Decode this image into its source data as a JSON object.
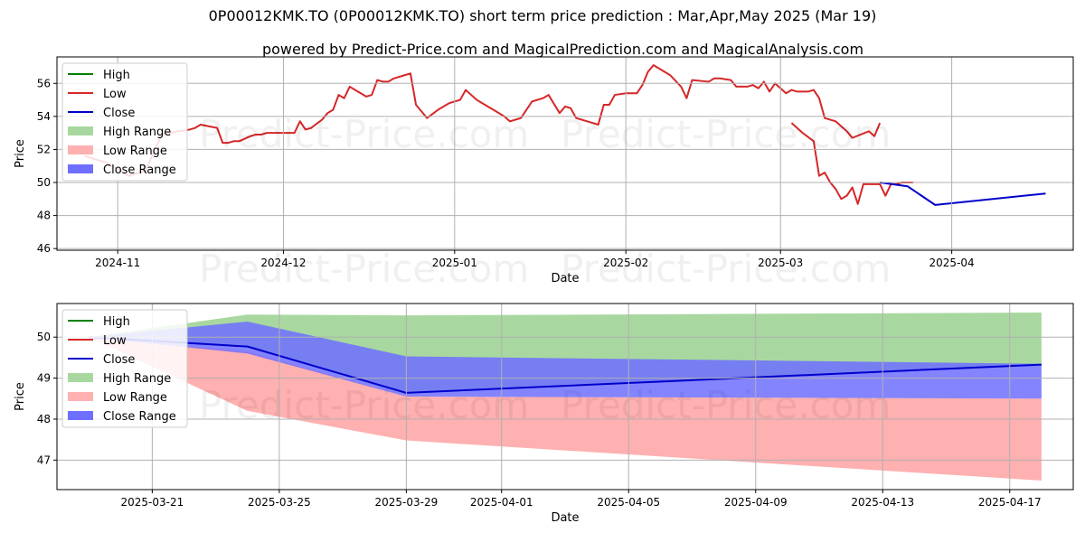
{
  "title": "0P00012KMK.TO (0P00012KMK.TO) short term price prediction : Mar,Apr,May 2025 (Mar 19)",
  "subtitle": "powered by Predict-Price.com and MagicalPrediction.com and MagicalAnalysis.com",
  "watermark": "Predict-Price.com",
  "colors": {
    "high": "#008000",
    "low": "#d62728",
    "close": "#0000cc",
    "high_range": "#a8d8a0",
    "low_range": "#ffb0b0",
    "close_range": "#6f6fff",
    "grid": "#b0b0b0"
  },
  "legend": [
    "High",
    "Low",
    "Close",
    "High Range",
    "Low Range",
    "Close Range"
  ],
  "chart_data": [
    {
      "type": "line",
      "xlabel": "Date",
      "ylabel": "Price",
      "xticks": [
        "2024-11",
        "2024-12",
        "2025-01",
        "2025-02",
        "2025-03",
        "2025-04"
      ],
      "yticks": [
        46,
        48,
        50,
        52,
        54,
        56
      ],
      "xlim": [
        "2024-10-21",
        "2025-04-23"
      ],
      "ylim": [
        45.9,
        57.6
      ],
      "grid": true,
      "legend_position": "upper-left",
      "series": [
        {
          "name": "Low",
          "x": [
            "2024-10-26",
            "2024-10-30",
            "2024-11-03",
            "2024-11-06",
            "2024-11-09",
            "2024-11-12",
            "2024-11-14",
            "2024-11-15",
            "2024-11-16",
            "2024-11-19",
            "2024-11-20",
            "2024-11-21",
            "2024-11-22",
            "2024-11-23",
            "2024-11-25",
            "2024-11-26",
            "2024-11-27",
            "2024-11-28",
            "2024-11-29",
            "2024-12-03",
            "2024-12-04",
            "2024-12-05",
            "2024-12-06",
            "2024-12-08",
            "2024-12-09",
            "2024-12-10",
            "2024-12-11",
            "2024-12-12",
            "2024-12-13",
            "2024-12-14",
            "2024-12-16",
            "2024-12-17",
            "2024-12-18",
            "2024-12-19",
            "2024-12-20",
            "2024-12-21",
            "2024-12-23",
            "2024-12-24",
            "2024-12-25",
            "2024-12-27",
            "2024-12-29",
            "2024-12-31",
            "2025-01-02",
            "2025-01-03",
            "2025-01-04",
            "2025-01-05",
            "2025-01-06",
            "2025-01-07",
            "2025-01-08",
            "2025-01-10",
            "2025-01-11",
            "2025-01-12",
            "2025-01-13",
            "2025-01-15",
            "2025-01-17",
            "2025-01-18",
            "2025-01-20",
            "2025-01-21",
            "2025-01-22",
            "2025-01-23",
            "2025-01-24",
            "2025-01-25",
            "2025-01-27",
            "2025-01-28",
            "2025-01-29",
            "2025-01-30",
            "2025-02-01",
            "2025-02-03",
            "2025-02-04",
            "2025-02-05",
            "2025-02-06",
            "2025-02-09",
            "2025-02-11",
            "2025-02-12",
            "2025-02-13",
            "2025-02-16",
            "2025-02-17",
            "2025-02-18",
            "2025-02-20",
            "2025-02-21",
            "2025-02-23",
            "2025-02-24",
            "2025-02-25",
            "2025-02-26",
            "2025-02-27",
            "2025-02-28",
            "2025-03-02",
            "2025-03-03",
            "2025-03-04",
            "2025-03-05",
            "2025-03-06",
            "2025-03-07",
            "2025-03-08",
            "2025-03-09",
            "2025-03-11",
            "2025-03-12",
            "2025-03-13",
            "2025-03-14",
            "2025-03-17",
            "2025-03-18",
            "2025-03-19"
          ],
          "values": [
            51.6,
            51.2,
            50.4,
            50.7,
            52.9,
            53.1,
            53.2,
            53.3,
            53.5,
            53.3,
            52.4,
            52.4,
            52.5,
            52.5,
            52.8,
            52.9,
            52.9,
            53.0,
            53.0,
            53.0,
            53.7,
            53.2,
            53.3,
            53.8,
            54.2,
            54.4,
            55.3,
            55.1,
            55.8,
            55.6,
            55.2,
            55.3,
            56.2,
            56.1,
            56.1,
            56.3,
            56.5,
            56.6,
            54.7,
            53.9,
            54.4,
            54.8,
            55.0,
            55.6,
            55.3,
            55.0,
            54.8,
            54.6,
            54.4,
            54.0,
            53.7,
            53.8,
            53.9,
            54.9,
            55.1,
            55.3,
            54.2,
            54.6,
            54.5,
            53.9,
            53.8,
            53.7,
            53.5,
            54.7,
            54.7,
            55.3,
            55.4,
            55.4,
            55.9,
            56.7,
            57.1,
            56.5,
            55.8,
            55.1,
            56.2,
            56.1,
            56.3,
            56.3,
            56.2,
            55.8,
            55.8,
            55.9,
            55.7,
            56.1,
            55.5,
            56.0,
            55.4,
            55.6,
            55.5,
            55.5,
            55.5,
            55.6,
            55.1,
            53.9,
            53.7,
            53.4,
            53.1,
            52.7,
            53.1,
            52.8,
            53.6
          ]
        },
        {
          "name": "Low",
          "x": [
            "2025-03-03",
            "2025-03-05",
            "2025-03-07",
            "2025-03-08",
            "2025-03-09",
            "2025-03-10",
            "2025-03-11",
            "2025-03-12",
            "2025-03-13",
            "2025-03-14",
            "2025-03-15",
            "2025-03-16",
            "2025-03-17",
            "2025-03-18",
            "2025-03-19",
            "2025-03-20",
            "2025-03-21",
            "2025-03-22",
            "2025-03-23",
            "2025-03-24",
            "2025-03-25"
          ],
          "values": [
            53.6,
            53.0,
            52.5,
            50.4,
            50.6,
            50.0,
            49.6,
            49.0,
            49.2,
            49.7,
            48.7,
            49.9,
            49.9,
            49.9,
            49.9,
            49.2,
            49.9,
            49.9,
            50.0,
            50.0,
            50.0
          ]
        },
        {
          "name": "Close",
          "x": [
            "2025-03-19",
            "2025-03-24",
            "2025-03-29",
            "2025-04-18"
          ],
          "values": [
            50.0,
            49.77,
            48.64,
            49.33
          ]
        }
      ]
    },
    {
      "type": "area",
      "xlabel": "Date",
      "ylabel": "Price",
      "xticks": [
        "2025-03-21",
        "2025-03-25",
        "2025-03-29",
        "2025-04-01",
        "2025-04-05",
        "2025-04-09",
        "2025-04-13",
        "2025-04-17"
      ],
      "yticks": [
        47,
        48,
        49,
        50
      ],
      "xlim": [
        "2025-03-18",
        "2025-04-19"
      ],
      "ylim": [
        46.28,
        50.82
      ],
      "grid": true,
      "legend_position": "upper-left",
      "x": [
        "2025-03-19",
        "2025-03-24",
        "2025-03-29",
        "2025-04-18"
      ],
      "series": [
        {
          "name": "High Range",
          "upper": [
            50.0,
            50.55,
            50.53,
            50.6
          ],
          "lower": [
            50.0,
            49.77,
            48.64,
            49.33
          ]
        },
        {
          "name": "Low Range",
          "upper": [
            50.0,
            49.65,
            48.55,
            48.5
          ],
          "lower": [
            50.0,
            48.2,
            47.48,
            46.5
          ]
        },
        {
          "name": "Close Range",
          "upper": [
            50.0,
            50.38,
            49.53,
            49.35
          ],
          "lower": [
            50.0,
            49.6,
            48.55,
            48.5
          ]
        },
        {
          "name": "Close",
          "values": [
            50.0,
            49.77,
            48.64,
            49.33
          ]
        }
      ]
    }
  ]
}
